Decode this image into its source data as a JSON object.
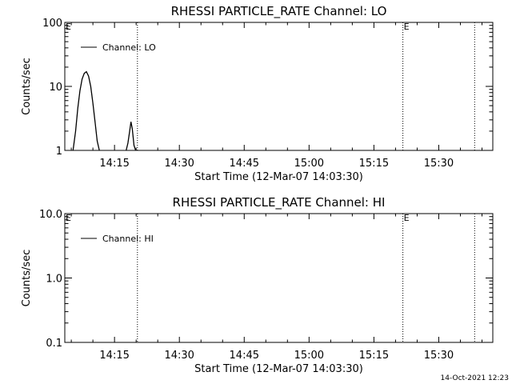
{
  "footer": {
    "timestamp": "14-Oct-2021 12:23"
  },
  "chart_data": [
    {
      "type": "line",
      "title": "RHESSI PARTICLE_RATE Channel: LO",
      "xlabel": "Start Time (12-Mar-07 14:03:30)",
      "ylabel": "Counts/sec",
      "yscale": "log",
      "ylim": [
        1,
        100
      ],
      "xlim_minutes": [
        0,
        99
      ],
      "xticks": {
        "values": [
          11.5,
          26.5,
          41.5,
          56.5,
          71.5,
          86.5
        ],
        "labels": [
          "14:15",
          "14:30",
          "14:45",
          "15:00",
          "15:15",
          "15:30"
        ]
      },
      "yticks": {
        "values": [
          1,
          10,
          100
        ],
        "labels": [
          "1",
          "10",
          "100"
        ]
      },
      "legend": {
        "position": "top-left",
        "label": "Channel: LO"
      },
      "event_markers": [
        {
          "x": 16.8,
          "label": ""
        },
        {
          "x": 78.2,
          "label": "E"
        },
        {
          "x": 94.8,
          "label": ""
        }
      ],
      "corner_label": "E",
      "series": [
        {
          "name": "Channel: LO",
          "x": [
            1.9,
            2.5,
            3.0,
            3.5,
            4.0,
            4.5,
            5.0,
            5.5,
            6.0,
            6.5,
            7.0,
            7.5,
            8.0,
            null,
            14.2,
            14.6,
            15.0,
            15.3,
            15.6,
            16.0,
            16.4
          ],
          "values": [
            0.8,
            2.0,
            4.5,
            8.5,
            13.0,
            16.0,
            17.0,
            14.5,
            10.0,
            5.5,
            2.8,
            1.4,
            0.8,
            null,
            0.8,
            1.3,
            2.0,
            2.8,
            2.2,
            1.2,
            0.8
          ]
        }
      ]
    },
    {
      "type": "line",
      "title": "RHESSI PARTICLE_RATE Channel: HI",
      "xlabel": "Start Time (12-Mar-07 14:03:30)",
      "ylabel": "Counts/sec",
      "yscale": "log",
      "ylim": [
        0.1,
        10.0
      ],
      "xlim_minutes": [
        0,
        99
      ],
      "xticks": {
        "values": [
          11.5,
          26.5,
          41.5,
          56.5,
          71.5,
          86.5
        ],
        "labels": [
          "14:15",
          "14:30",
          "14:45",
          "15:00",
          "15:15",
          "15:30"
        ]
      },
      "yticks": {
        "values": [
          0.1,
          1.0,
          10.0
        ],
        "labels": [
          "0.1",
          "1.0",
          "10.0"
        ]
      },
      "legend": {
        "position": "top-left",
        "label": "Channel: HI"
      },
      "event_markers": [
        {
          "x": 16.8,
          "label": ""
        },
        {
          "x": 78.2,
          "label": "E"
        },
        {
          "x": 94.8,
          "label": ""
        }
      ],
      "corner_label": "E",
      "series": [
        {
          "name": "Channel: HI",
          "x": [],
          "values": []
        }
      ]
    }
  ]
}
